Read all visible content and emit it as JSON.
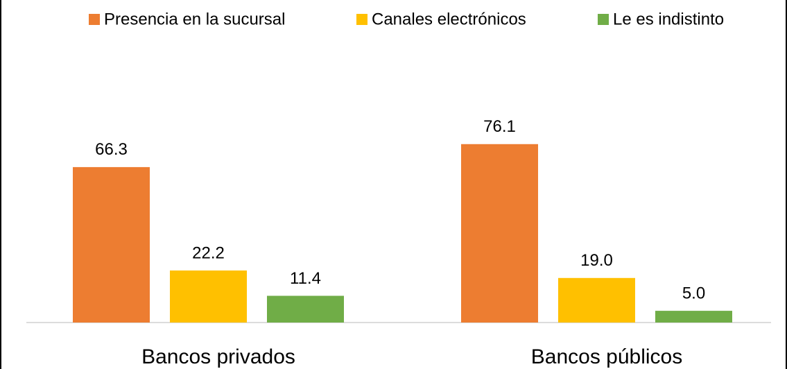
{
  "chart_data": {
    "type": "bar",
    "categories": [
      "Bancos privados",
      "Bancos públicos"
    ],
    "series": [
      {
        "name": "Presencia en la sucursal",
        "color": "#ED7D31",
        "values": [
          66.3,
          76.1
        ],
        "value_labels": [
          "66.3",
          "76.1"
        ]
      },
      {
        "name": "Canales electrónicos",
        "color": "#FFC000",
        "values": [
          22.2,
          19.0
        ],
        "value_labels": [
          "22.2",
          "19.0"
        ]
      },
      {
        "name": "Le es indistinto",
        "color": "#70AD47",
        "values": [
          11.4,
          5.0
        ],
        "value_labels": [
          "11.4",
          "5.0"
        ]
      }
    ],
    "legend": "top"
  }
}
